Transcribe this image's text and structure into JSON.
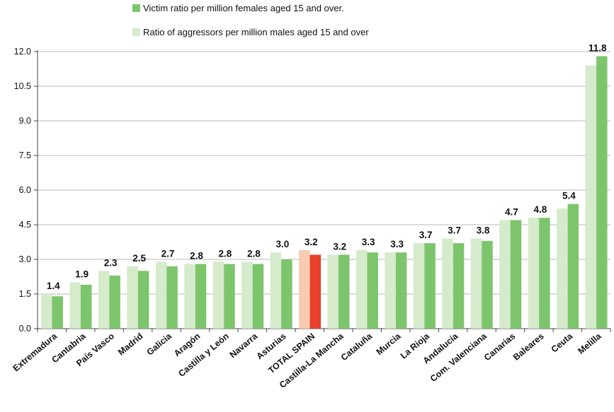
{
  "chart_data": {
    "type": "bar",
    "title": "",
    "xlabel": "",
    "ylabel": "",
    "ylim": [
      0,
      12
    ],
    "yticks": [
      "0.0",
      "1.5",
      "3.0",
      "4.5",
      "6.0",
      "7.5",
      "9.0",
      "10.5",
      "12.0"
    ],
    "grid": true,
    "legend_position": "top",
    "categories": [
      "Extremadura",
      "Cantabria",
      "País Vasco",
      "Madrid",
      "Galicia",
      "Aragón",
      "Castilla y León",
      "Navarra",
      "Asturias",
      "TOTAL SPAIN",
      "Castilla-La Mancha",
      "Cataluña",
      "Murcia",
      "La Rioja",
      "Andalucía",
      "Com. Valenciana",
      "Canarias",
      "Baleares",
      "Ceuta",
      "Melilla"
    ],
    "highlight_category": "TOTAL SPAIN",
    "series": [
      {
        "name": "Victim ratio per million females aged 15 and over.",
        "color": "#7dc56c",
        "highlight_color": "#e8402a",
        "values": [
          1.4,
          1.9,
          2.3,
          2.5,
          2.7,
          2.8,
          2.8,
          2.8,
          3.0,
          3.2,
          3.2,
          3.3,
          3.3,
          3.7,
          3.7,
          3.8,
          4.7,
          4.8,
          5.4,
          11.8
        ],
        "labels": [
          "1.4",
          "1.9",
          "2.3",
          "2.5",
          "2.7",
          "2.8",
          "2.8",
          "2.8",
          "3.0",
          "3.2",
          "3.2",
          "3.3",
          "3.3",
          "3.7",
          "3.7",
          "3.8",
          "4.7",
          "4.8",
          "5.4",
          "11.8"
        ]
      },
      {
        "name": "Ratio of aggressors per million males aged 15 and over",
        "color": "#d5ebcc",
        "highlight_color": "#f8cbb0",
        "values": [
          1.5,
          2.0,
          2.5,
          2.7,
          2.9,
          2.8,
          2.9,
          2.9,
          3.3,
          3.4,
          3.2,
          3.4,
          3.3,
          3.7,
          3.9,
          3.9,
          4.7,
          4.8,
          5.2,
          11.4
        ]
      }
    ]
  }
}
